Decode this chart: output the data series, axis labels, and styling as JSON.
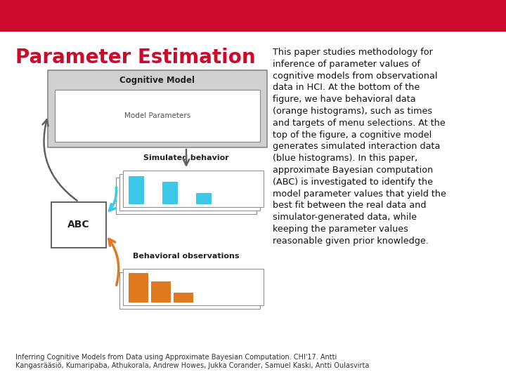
{
  "background_color": "#ffffff",
  "header_color": "#cc0a2b",
  "title": "Parameter Estimation",
  "title_color": "#cc0a2b",
  "title_fontsize": 20,
  "body_text": "This paper studies methodology for\ninference of parameter values of\ncognitive models from observational\ndata in HCI. At the bottom of the\nfigure, we have behavioral data\n(orange histograms), such as times\nand targets of menu selections. At the\ntop of the figure, a cognitive model\ngenerates simulated interaction data\n(blue histograms). In this paper,\napproximate Bayesian computation\n(ABC) is investigated to identify the\nmodel parameter values that yield the\nbest fit between the real data and\nsimulator-generated data, while\nkeeping the parameter values\nreasonable given prior knowledge.",
  "body_fontsize": 9.2,
  "footer_text": "Inferring Cognitive Models from Data using Approximate Bayesian Computation. CHI'17. Antti\nKangasrääsiö, Kumaripaba, Athukorala, Andrew Howes, Jukka Corander, Samuel Kaski, Antti Oulasvirta",
  "footer_fontsize": 7.0,
  "cog_model_label": "Cognitive Model",
  "model_params_label": "Model Parameters",
  "sim_behavior_label": "Simulated behavior",
  "behav_obs_label": "Behavioral observations",
  "abc_label": "ABC",
  "blue_color": "#3ec8e8",
  "orange_color": "#e07820",
  "arrow_gray": "#606060",
  "box_gray_fill": "#d0d0d0",
  "box_border": "#888888"
}
